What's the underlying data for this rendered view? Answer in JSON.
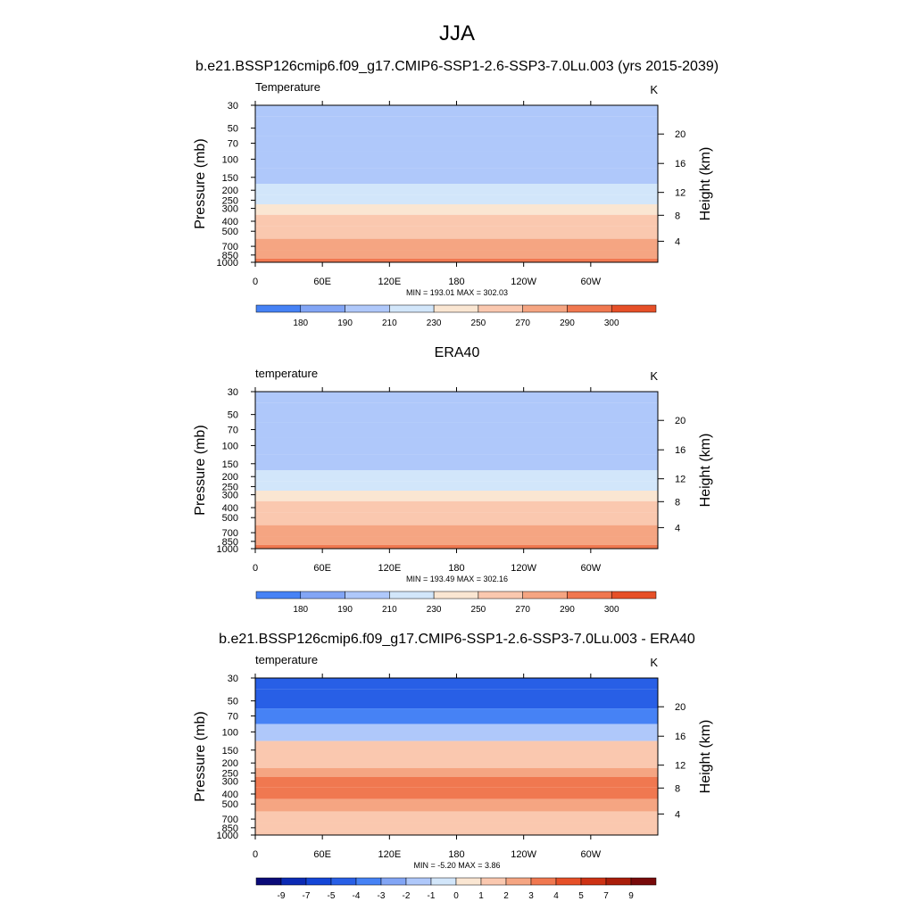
{
  "page": {
    "title": "JJA",
    "subtitle": "b.e21.BSSP126cmip6.f09_g17.CMIP6-SSP1-2.6-SSP3-7.0Lu.003 (yrs 2015-2039)"
  },
  "chart_data": [
    {
      "type": "heatmap",
      "title": "",
      "variable_label": "Temperature",
      "units": "K",
      "ylabel": "Pressure (mb)",
      "y2label": "Height (km)",
      "x_ticks": [
        "0",
        "60E",
        "120E",
        "180",
        "120W",
        "60W"
      ],
      "y_ticks": [
        "30",
        "50",
        "70",
        "100",
        "150",
        "200",
        "250",
        "300",
        "400",
        "500",
        "700",
        "850",
        "1000"
      ],
      "y2_ticks": [
        "4",
        "8",
        "12",
        "16",
        "20"
      ],
      "stats": "MIN = 193.01  MAX = 302.03",
      "colorbar_labels": [
        "180",
        "190",
        "210",
        "230",
        "250",
        "270",
        "290",
        "300"
      ],
      "colorbar_colors": [
        "#0a0a78",
        "#0b2ab4",
        "#1446d7",
        "#285fe6",
        "#4682f5",
        "#82a5f5",
        "#afc8fa",
        "#d2e6fa",
        "#fae6d2",
        "#fac8af",
        "#f5a582",
        "#f07850",
        "#e65028",
        "#cd3214",
        "#aa1e0a",
        "#780a0a"
      ],
      "bands": [
        {
          "level": "30",
          "value": 205
        },
        {
          "level": "50",
          "value": 200
        },
        {
          "level": "70",
          "value": 195
        },
        {
          "level": "100",
          "value": 195
        },
        {
          "level": "150",
          "value": 205
        },
        {
          "level": "200",
          "value": 215
        },
        {
          "level": "250",
          "value": 225
        },
        {
          "level": "300",
          "value": 235
        },
        {
          "level": "400",
          "value": 250
        },
        {
          "level": "500",
          "value": 260
        },
        {
          "level": "700",
          "value": 275
        },
        {
          "level": "850",
          "value": 285
        },
        {
          "level": "1000",
          "value": 295
        }
      ]
    },
    {
      "type": "heatmap",
      "title": "ERA40",
      "variable_label": "temperature",
      "units": "K",
      "ylabel": "Pressure (mb)",
      "y2label": "Height (km)",
      "x_ticks": [
        "0",
        "60E",
        "120E",
        "180",
        "120W",
        "60W"
      ],
      "y_ticks": [
        "30",
        "50",
        "70",
        "100",
        "150",
        "200",
        "250",
        "300",
        "400",
        "500",
        "700",
        "850",
        "1000"
      ],
      "y2_ticks": [
        "4",
        "8",
        "12",
        "16",
        "20"
      ],
      "stats": "MIN = 193.49  MAX = 302.16",
      "colorbar_labels": [
        "180",
        "190",
        "210",
        "230",
        "250",
        "270",
        "290",
        "300"
      ],
      "colorbar_colors": [
        "#0a0a78",
        "#0b2ab4",
        "#1446d7",
        "#285fe6",
        "#4682f5",
        "#82a5f5",
        "#afc8fa",
        "#d2e6fa",
        "#fae6d2",
        "#fac8af",
        "#f5a582",
        "#f07850",
        "#e65028",
        "#cd3214",
        "#aa1e0a",
        "#780a0a"
      ],
      "bands": [
        {
          "level": "30",
          "value": 205
        },
        {
          "level": "50",
          "value": 200
        },
        {
          "level": "70",
          "value": 198
        },
        {
          "level": "100",
          "value": 195
        },
        {
          "level": "150",
          "value": 205
        },
        {
          "level": "200",
          "value": 215
        },
        {
          "level": "250",
          "value": 225
        },
        {
          "level": "300",
          "value": 235
        },
        {
          "level": "400",
          "value": 250
        },
        {
          "level": "500",
          "value": 260
        },
        {
          "level": "700",
          "value": 275
        },
        {
          "level": "850",
          "value": 285
        },
        {
          "level": "1000",
          "value": 295
        }
      ]
    },
    {
      "type": "heatmap",
      "title": "b.e21.BSSP126cmip6.f09_g17.CMIP6-SSP1-2.6-SSP3-7.0Lu.003 - ERA40",
      "variable_label": "temperature",
      "units": "K",
      "ylabel": "Pressure (mb)",
      "y2label": "Height (km)",
      "x_ticks": [
        "0",
        "60E",
        "120E",
        "180",
        "120W",
        "60W"
      ],
      "y_ticks": [
        "30",
        "50",
        "70",
        "100",
        "150",
        "200",
        "250",
        "300",
        "400",
        "500",
        "700",
        "850",
        "1000"
      ],
      "y2_ticks": [
        "4",
        "8",
        "12",
        "16",
        "20"
      ],
      "stats": "MIN =  -5.20  MAX =   3.86",
      "colorbar_labels": [
        "-9",
        "-7",
        "-5",
        "-4",
        "-3",
        "-2",
        "-1",
        "0",
        "1",
        "2",
        "3",
        "4",
        "5",
        "7",
        "9"
      ],
      "colorbar_colors": [
        "#0a0a78",
        "#0b2ab4",
        "#1446d7",
        "#285fe6",
        "#4682f5",
        "#82a5f5",
        "#afc8fa",
        "#d2e6fa",
        "#fae6d2",
        "#fac8af",
        "#f5a582",
        "#f07850",
        "#e65028",
        "#cd3214",
        "#aa1e0a",
        "#780a0a"
      ],
      "bands": [
        {
          "level": "30",
          "value": -4.5
        },
        {
          "level": "50",
          "value": -4.5
        },
        {
          "level": "70",
          "value": -3.5
        },
        {
          "level": "100",
          "value": -1.5
        },
        {
          "level": "150",
          "value": 1.5
        },
        {
          "level": "200",
          "value": 1.5
        },
        {
          "level": "250",
          "value": 2.5
        },
        {
          "level": "300",
          "value": 3.5
        },
        {
          "level": "400",
          "value": 3.5
        },
        {
          "level": "500",
          "value": 2.5
        },
        {
          "level": "700",
          "value": 1.5
        },
        {
          "level": "850",
          "value": 1.5
        },
        {
          "level": "1000",
          "value": 1.5
        }
      ]
    }
  ]
}
